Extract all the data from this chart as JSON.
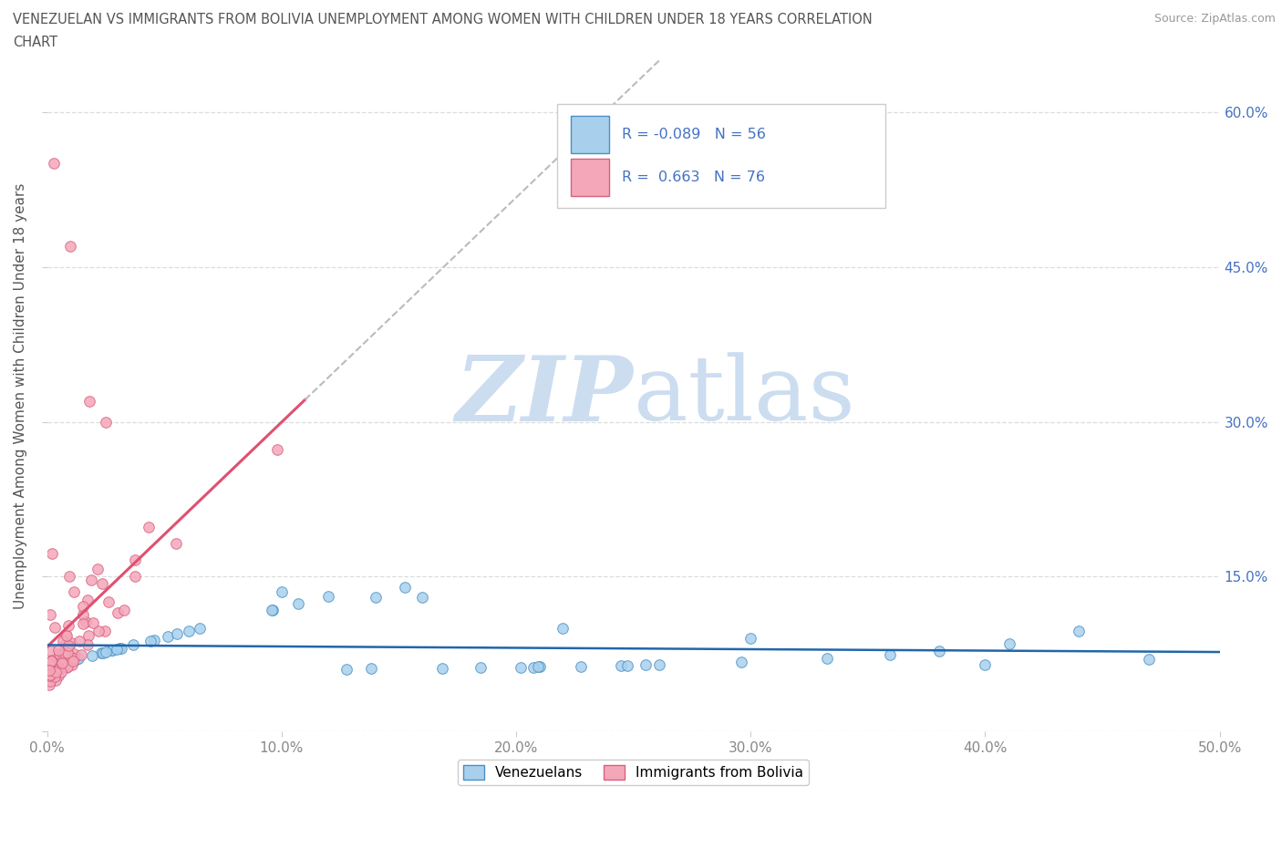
{
  "title_line1": "VENEZUELAN VS IMMIGRANTS FROM BOLIVIA UNEMPLOYMENT AMONG WOMEN WITH CHILDREN UNDER 18 YEARS CORRELATION",
  "title_line2": "CHART",
  "source": "Source: ZipAtlas.com",
  "ylabel": "Unemployment Among Women with Children Under 18 years",
  "xlim": [
    0.0,
    0.5
  ],
  "ylim": [
    0.0,
    0.65
  ],
  "xtick_vals": [
    0.0,
    0.1,
    0.2,
    0.3,
    0.4,
    0.5
  ],
  "ytick_vals": [
    0.0,
    0.15,
    0.3,
    0.45,
    0.6
  ],
  "xticklabels": [
    "0.0%",
    "10.0%",
    "20.0%",
    "30.0%",
    "40.0%",
    "50.0%"
  ],
  "yticklabels_right": [
    "",
    "15.0%",
    "30.0%",
    "45.0%",
    "60.0%"
  ],
  "venezuelan_fill": "#a8d0ed",
  "venezuelan_edge": "#4a90c4",
  "bolivia_fill": "#f4a7b9",
  "bolivia_edge": "#d96080",
  "trendline_ven_color": "#2166ac",
  "trendline_bol_solid_color": "#e05070",
  "trendline_bol_dashed_color": "#bbbbbb",
  "legend_venezuelan_label": "Venezuelans",
  "legend_bolivia_label": "Immigrants from Bolivia",
  "R_venezuelan": -0.089,
  "N_venezuelan": 56,
  "R_bolivia": 0.663,
  "N_bolivia": 76,
  "watermark_zip": "ZIP",
  "watermark_atlas": "atlas",
  "watermark_color": "#ccddf0",
  "grid_color": "#dddddd",
  "title_color": "#555555",
  "axis_label_color": "#555555",
  "tick_label_color_right": "#4472c4",
  "tick_label_color_bottom": "#888888"
}
